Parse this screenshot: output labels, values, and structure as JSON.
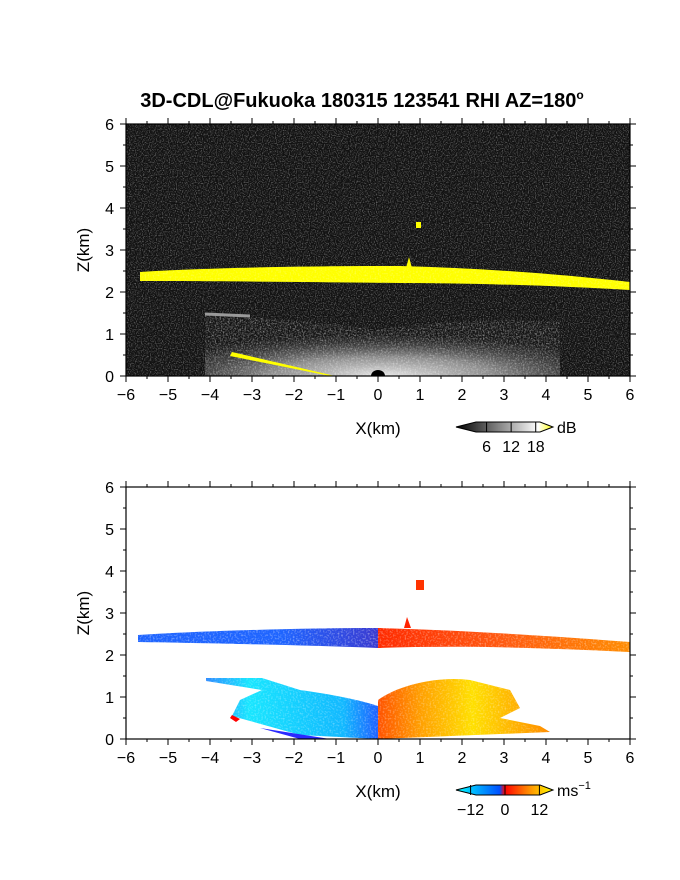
{
  "title": "3D-CDL@Fukuoka 180315 123541 RHI AZ=180",
  "title_superscript": "o",
  "chart_data": [
    {
      "type": "heatmap",
      "name": "backscatter intensity RHI",
      "xlabel": "X(km)",
      "ylabel": "Z(km)",
      "xlim": [
        -6,
        6
      ],
      "ylim": [
        0,
        6
      ],
      "xticks": [
        "−6",
        "−5",
        "−4",
        "−3",
        "−2",
        "−1",
        "0",
        "1",
        "2",
        "3",
        "4",
        "5",
        "6"
      ],
      "yticks": [
        "0",
        "1",
        "2",
        "3",
        "4",
        "5",
        "6"
      ],
      "background": "#111111",
      "colorbar": {
        "unit": "dB",
        "ticks": [
          "6",
          "12",
          "18"
        ],
        "min": 0,
        "max": 21,
        "colors": [
          "#000000",
          "#ffffff",
          "#ffff00"
        ]
      },
      "features": [
        {
          "label": "cloud base layer (saturated, >18 dB)",
          "x": [
            -5.7,
            6.0
          ],
          "z": [
            2.1,
            2.6
          ],
          "color": "#ffff00"
        },
        {
          "label": "small echo",
          "x": [
            1.05,
            1.15
          ],
          "z": [
            3.55,
            3.7
          ],
          "color": "#ffff00"
        },
        {
          "label": "boundary layer aerosol return",
          "x": [
            -4.0,
            4.5
          ],
          "z": [
            0.0,
            1.3
          ],
          "color": "#b0b0b0"
        },
        {
          "label": "ground clutter",
          "x": [
            -3.5,
            -0.8
          ],
          "z": [
            0.0,
            0.55
          ],
          "color": "#ffff00"
        }
      ]
    },
    {
      "type": "heatmap",
      "name": "Doppler velocity RHI",
      "xlabel": "X(km)",
      "ylabel": "Z(km)",
      "xlim": [
        -6,
        6
      ],
      "ylim": [
        0,
        6
      ],
      "xticks": [
        "−6",
        "−5",
        "−4",
        "−3",
        "−2",
        "−1",
        "0",
        "1",
        "2",
        "3",
        "4",
        "5",
        "6"
      ],
      "yticks": [
        "0",
        "1",
        "2",
        "3",
        "4",
        "5",
        "6"
      ],
      "background": "#ffffff",
      "colorbar": {
        "unit": "ms",
        "unit_superscript": "−1",
        "ticks": [
          "−12",
          "0",
          "12"
        ],
        "min": -15,
        "max": 15,
        "colors": [
          "#00ffff",
          "#0050ff",
          "#ff0000",
          "#ff8c00",
          "#ffff00"
        ]
      },
      "features": [
        {
          "label": "cloud base, approaching (negative)",
          "x": [
            -5.7,
            0.0
          ],
          "z": [
            2.2,
            2.6
          ],
          "velocity": [
            -8,
            -3
          ]
        },
        {
          "label": "cloud base, receding (positive)",
          "x": [
            0.0,
            6.0
          ],
          "z": [
            2.1,
            2.6
          ],
          "velocity": [
            3,
            8
          ]
        },
        {
          "label": "small echo",
          "x": [
            1.0,
            1.15
          ],
          "z": [
            3.55,
            3.75
          ],
          "velocity": 3
        },
        {
          "label": "boundary layer, negative",
          "x": [
            -4.0,
            0.0
          ],
          "z": [
            0.0,
            1.5
          ],
          "velocity": [
            -12,
            -4
          ]
        },
        {
          "label": "boundary layer, positive",
          "x": [
            0.0,
            4.0
          ],
          "z": [
            0.0,
            1.3
          ],
          "velocity": [
            4,
            12
          ]
        }
      ]
    }
  ]
}
